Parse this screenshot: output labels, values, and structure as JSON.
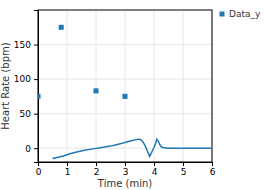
{
  "chart_data": {
    "type": "line",
    "xlabel": "Time (min)",
    "ylabel": "Heart Rate (bpm)",
    "series": [
      {
        "type": "line",
        "color": "#1f77b4",
        "x": [
          0.5,
          0.7,
          0.9,
          1.1,
          1.3,
          1.6,
          1.9,
          2.2,
          2.5,
          2.7,
          2.9,
          3.05,
          3.15,
          3.25,
          3.35,
          3.45,
          3.5,
          3.55,
          3.6,
          3.65,
          3.7,
          3.75,
          3.8,
          3.85,
          3.9,
          3.95,
          4.0,
          4.05,
          4.1,
          4.15,
          4.2,
          4.25,
          4.3,
          4.5,
          4.7,
          5.0,
          5.3,
          5.6,
          5.9,
          6.0
        ],
        "values": [
          -15,
          -13,
          -11,
          -8,
          -6,
          -3,
          -1,
          1,
          3,
          5,
          7,
          9,
          10,
          11,
          12,
          13,
          13,
          12,
          10,
          7,
          3,
          -2,
          -7,
          -12,
          -8,
          -3,
          1,
          6,
          13,
          10,
          5,
          2,
          1,
          0,
          0,
          0,
          0,
          0,
          0,
          0
        ]
      },
      {
        "name": "Data_y",
        "type": "scatter",
        "color": "#1f77b4",
        "marker": "square",
        "x": [
          0.0,
          0.8,
          2.0,
          3.0
        ],
        "values": [
          75,
          175,
          83,
          75
        ]
      }
    ],
    "xlim": [
      0,
      6
    ],
    "xticks": [
      0,
      1,
      2,
      3,
      4,
      5,
      6
    ],
    "ylim": [
      -20,
      200
    ],
    "yticks": [
      0,
      50,
      100,
      150
    ],
    "grid": true,
    "legend": "right"
  }
}
